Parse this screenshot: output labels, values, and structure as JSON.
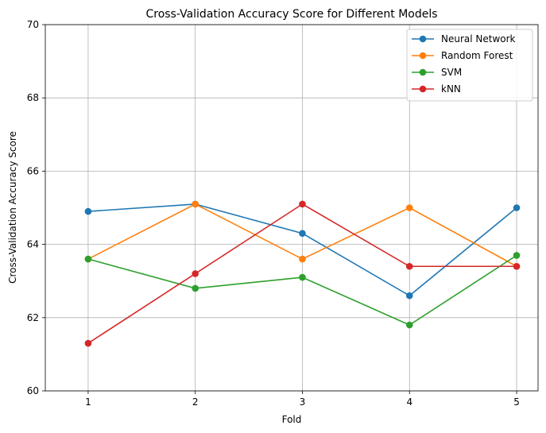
{
  "chart_data": {
    "type": "line",
    "title": "Cross-Validation Accuracy Score for Different Models",
    "xlabel": "Fold",
    "ylabel": "Cross-Validation Accuracy Score",
    "x": [
      1,
      2,
      3,
      4,
      5
    ],
    "xticks": [
      "1",
      "2",
      "3",
      "4",
      "5"
    ],
    "yticks": [
      "60",
      "62",
      "64",
      "66",
      "68",
      "70"
    ],
    "ylim": [
      60,
      70
    ],
    "grid": true,
    "legend_position": "top-right",
    "series": [
      {
        "name": "Neural Network",
        "color": "#1f77b4",
        "values": [
          64.9,
          65.1,
          64.3,
          62.6,
          65.0
        ]
      },
      {
        "name": "Random Forest",
        "color": "#ff7f0e",
        "values": [
          63.6,
          65.1,
          63.6,
          65.0,
          63.4
        ]
      },
      {
        "name": "SVM",
        "color": "#2ca02c",
        "values": [
          63.6,
          62.8,
          63.1,
          61.8,
          63.7
        ]
      },
      {
        "name": "kNN",
        "color": "#d62728",
        "values": [
          61.3,
          63.2,
          65.1,
          63.4,
          63.4
        ]
      }
    ]
  }
}
